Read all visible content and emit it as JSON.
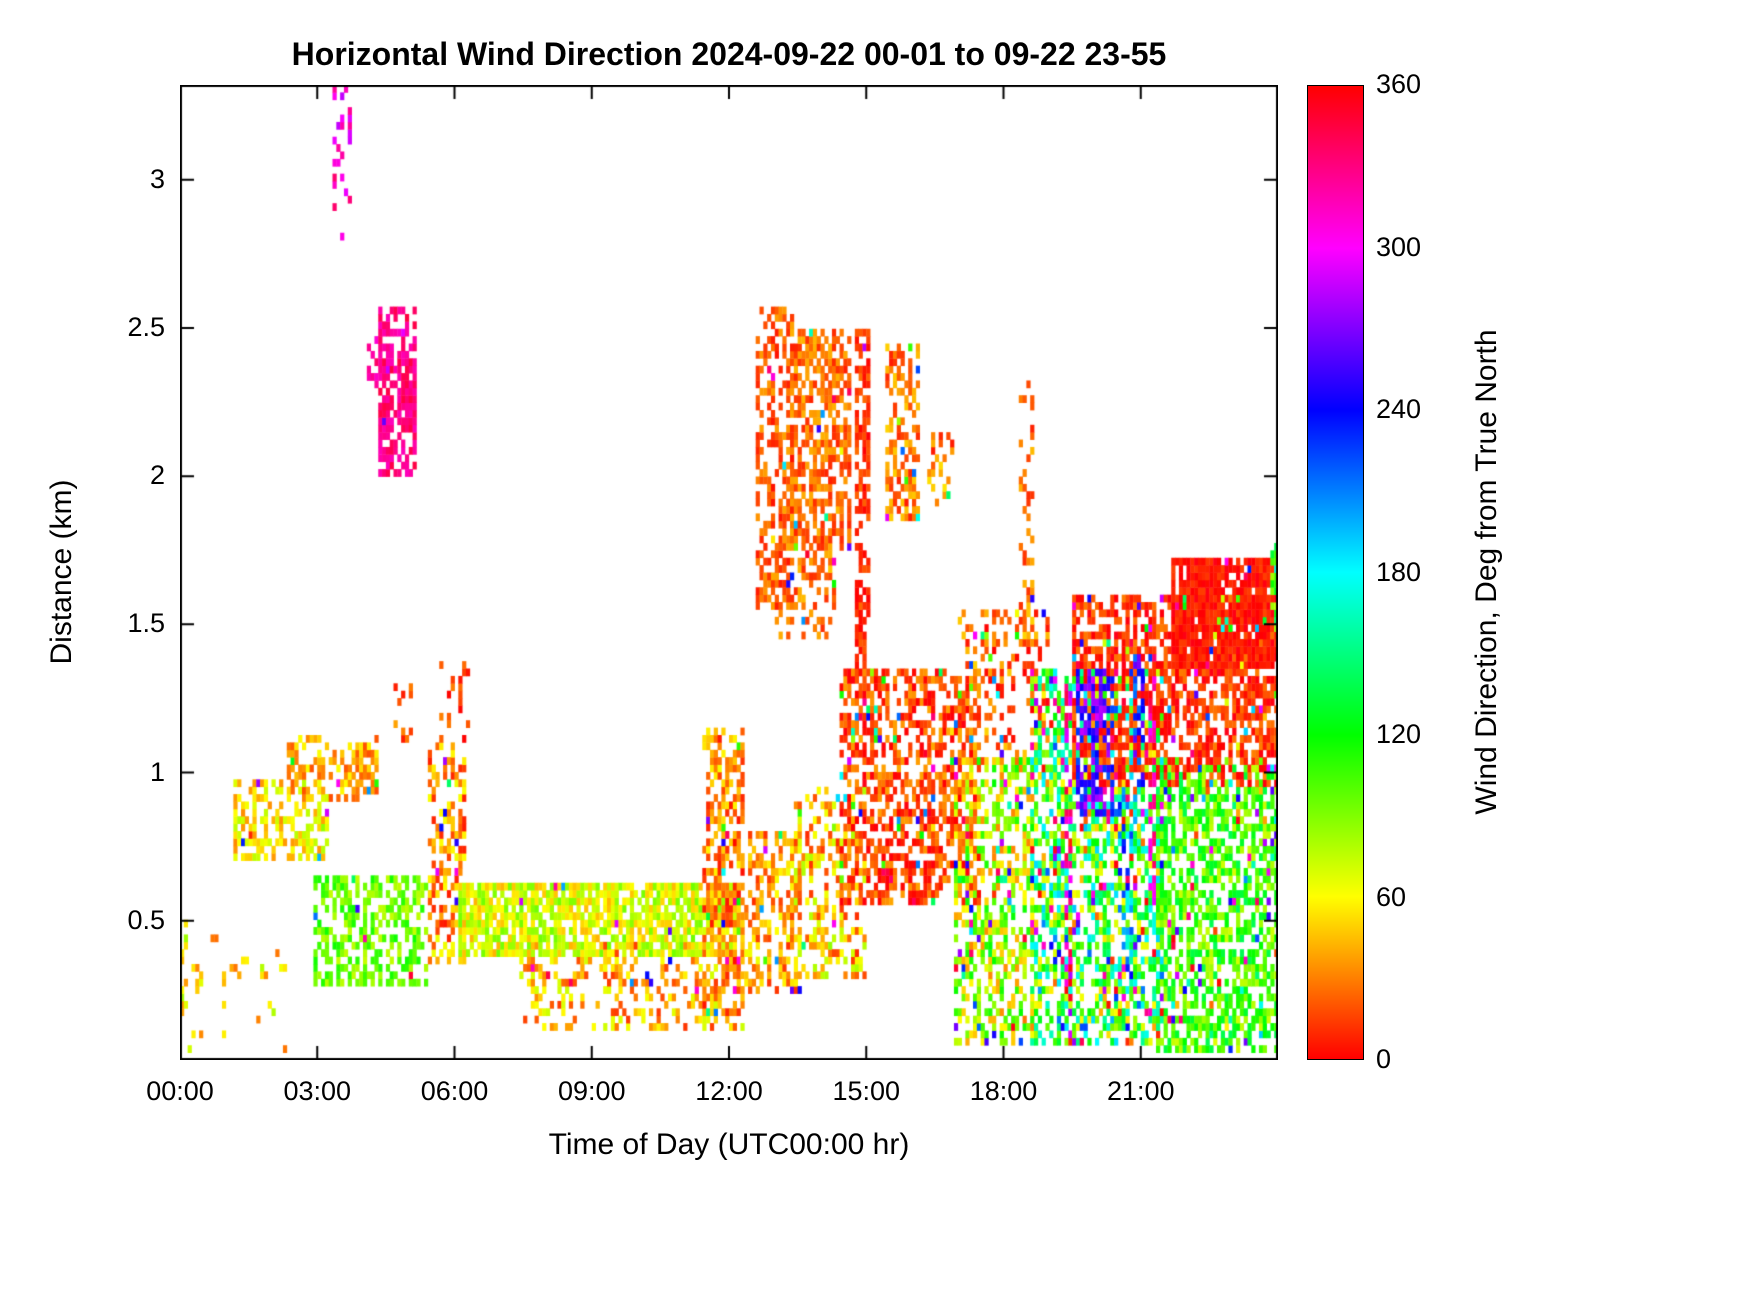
{
  "figure": {
    "title": "Horizontal Wind Direction 2024-09-22 00-01 to 09-22 23-55",
    "xlabel": "Time of Day (UTC00:00 hr)",
    "ylabel": "Distance (km)",
    "colorbar_label": "Wind Direction, Deg from True North"
  },
  "chart_data": {
    "type": "heatmap",
    "title": "Horizontal Wind Direction 2024-09-22 00-01 to 09-22 23-55",
    "xlabel": "Time of Day (UTC00:00 hr)",
    "ylabel": "Distance (km)",
    "x_unit": "hours UTC",
    "y_unit": "km",
    "x_range": [
      0,
      24
    ],
    "y_range": [
      0.03,
      3.32
    ],
    "x_ticks": [
      {
        "value": 0,
        "label": "00:00"
      },
      {
        "value": 3,
        "label": "03:00"
      },
      {
        "value": 6,
        "label": "06:00"
      },
      {
        "value": 9,
        "label": "09:00"
      },
      {
        "value": 12,
        "label": "12:00"
      },
      {
        "value": 15,
        "label": "15:00"
      },
      {
        "value": 18,
        "label": "18:00"
      },
      {
        "value": 21,
        "label": "21:00"
      }
    ],
    "y_ticks": [
      0.5,
      1,
      1.5,
      2,
      2.5,
      3
    ],
    "colorbar": {
      "label": "Wind Direction, Deg from True North",
      "range": [
        0,
        360
      ],
      "ticks": [
        0,
        60,
        120,
        180,
        240,
        300,
        360
      ],
      "colormap": "hsv"
    },
    "grid": {
      "cols": 288,
      "rows": 132
    },
    "background": "#ffffff",
    "frame_color": "#000000",
    "clusters_note": "Sparse pixel data approximated as boxes: t=hours UTC, h=km, density=fill fraction, dir=mean wind direction deg, spread=+/- deg, outlier=fraction of random 0-360 specks. Earlier clusters take precedence.",
    "clusters": [
      {
        "name": "pink-plume-0440",
        "t": [
          4.35,
          5.15
        ],
        "h": [
          2.0,
          2.58
        ],
        "density": 0.65,
        "dir": 330,
        "spread": 15,
        "outlier": 0.03
      },
      {
        "name": "pink-specks-0330-top",
        "t": [
          3.3,
          3.75
        ],
        "h": [
          2.8,
          3.32
        ],
        "density": 0.22,
        "dir": 310,
        "spread": 25,
        "outlier": 0
      },
      {
        "name": "pink-speck-0410",
        "t": [
          4.05,
          4.3
        ],
        "h": [
          2.3,
          2.5
        ],
        "density": 0.3,
        "dir": 320,
        "spread": 20,
        "outlier": 0.05
      },
      {
        "name": "red-stripe-1455",
        "t": [
          14.75,
          15.1
        ],
        "h": [
          1.3,
          2.5
        ],
        "density": 0.6,
        "dir": 12,
        "spread": 14,
        "outlier": 0.03
      },
      {
        "name": "orange-cloud-1240",
        "t": [
          12.55,
          13.4
        ],
        "h": [
          1.55,
          2.58
        ],
        "density": 0.5,
        "dir": 22,
        "spread": 18,
        "outlier": 0.04
      },
      {
        "name": "orange-cloud-1320",
        "t": [
          13.3,
          14.65
        ],
        "h": [
          1.75,
          2.5
        ],
        "density": 0.62,
        "dir": 25,
        "spread": 18,
        "outlier": 0.05
      },
      {
        "name": "orange-cloud-1300-low",
        "t": [
          13.0,
          14.3
        ],
        "h": [
          1.45,
          1.8
        ],
        "density": 0.35,
        "dir": 28,
        "spread": 20,
        "outlier": 0.04
      },
      {
        "name": "orange-patch-1545",
        "t": [
          15.45,
          16.2
        ],
        "h": [
          1.85,
          2.45
        ],
        "density": 0.5,
        "dir": 28,
        "spread": 22,
        "outlier": 0.1
      },
      {
        "name": "orange-patch-1630",
        "t": [
          16.35,
          16.95
        ],
        "h": [
          1.9,
          2.15
        ],
        "density": 0.35,
        "dir": 30,
        "spread": 25,
        "outlier": 0.08
      },
      {
        "name": "orange-stripe-1830",
        "t": [
          18.3,
          18.65
        ],
        "h": [
          1.4,
          2.3
        ],
        "density": 0.25,
        "dir": 28,
        "spread": 20,
        "outlier": 0.05
      },
      {
        "name": "speck-1830-top",
        "t": [
          18.4,
          18.55
        ],
        "h": [
          2.25,
          2.33
        ],
        "density": 0.6,
        "dir": 25,
        "spread": 10,
        "outlier": 0
      },
      {
        "name": "green-edge-top-right",
        "t": [
          23.85,
          24.0
        ],
        "h": [
          1.45,
          1.78
        ],
        "density": 0.5,
        "dir": 110,
        "spread": 35,
        "outlier": 0.05
      },
      {
        "name": "red-band-top-late",
        "t": [
          21.7,
          24.0
        ],
        "h": [
          1.35,
          1.72
        ],
        "density": 0.85,
        "dir": 5,
        "spread": 10,
        "outlier": 0.03
      },
      {
        "name": "blue-patch-1940",
        "t": [
          19.55,
          20.45
        ],
        "h": [
          0.85,
          1.35
        ],
        "density": 0.55,
        "dir": 255,
        "spread": 35,
        "outlier": 0.1
      },
      {
        "name": "blue-stripe-2055",
        "t": [
          20.85,
          21.1
        ],
        "h": [
          0.95,
          1.4
        ],
        "density": 0.5,
        "dir": 235,
        "spread": 35,
        "outlier": 0.08
      },
      {
        "name": "magenta-stripe-1925",
        "t": [
          19.3,
          19.5
        ],
        "h": [
          0.3,
          1.3
        ],
        "density": 0.5,
        "dir": 315,
        "spread": 30,
        "outlier": 0.08
      },
      {
        "name": "magenta-stripe-2115",
        "t": [
          21.15,
          21.3
        ],
        "h": [
          0.55,
          1.3
        ],
        "density": 0.45,
        "dir": 320,
        "spread": 25,
        "outlier": 0.08
      },
      {
        "name": "cyan-stripe-2035",
        "t": [
          20.5,
          20.8
        ],
        "h": [
          0.3,
          0.95
        ],
        "density": 0.4,
        "dir": 205,
        "spread": 40,
        "outlier": 0.1
      },
      {
        "name": "red-region-late",
        "t": [
          19.5,
          24.0
        ],
        "h": [
          0.95,
          1.6
        ],
        "density": 0.6,
        "dir": 12,
        "spread": 18,
        "outlier": 0.1
      },
      {
        "name": "multicolor-noise-1840-2130",
        "t": [
          18.6,
          21.5
        ],
        "h": [
          0.08,
          1.35
        ],
        "density": 0.55,
        "dir": 120,
        "spread": 70,
        "outlier": 0.3
      },
      {
        "name": "green-region-late",
        "t": [
          21.3,
          24.0
        ],
        "h": [
          0.05,
          1.05
        ],
        "density": 0.6,
        "dir": 105,
        "spread": 35,
        "outlier": 0.12
      },
      {
        "name": "mixed-region-1700-1840",
        "t": [
          16.9,
          18.7
        ],
        "h": [
          0.08,
          1.05
        ],
        "density": 0.5,
        "dir": 75,
        "spread": 45,
        "outlier": 0.15
      },
      {
        "name": "red-orange-region-1430-1730",
        "t": [
          14.4,
          17.5
        ],
        "h": [
          0.55,
          1.35
        ],
        "density": 0.55,
        "dir": 18,
        "spread": 22,
        "outlier": 0.1
      },
      {
        "name": "orange-scatter-1700-1900-mid",
        "t": [
          17.0,
          19.0
        ],
        "h": [
          1.0,
          1.55
        ],
        "density": 0.3,
        "dir": 25,
        "spread": 25,
        "outlier": 0.1
      },
      {
        "name": "yellow-scatter-1330-1500",
        "t": [
          13.4,
          15.0
        ],
        "h": [
          0.3,
          0.95
        ],
        "density": 0.38,
        "dir": 45,
        "spread": 35,
        "outlier": 0.07
      },
      {
        "name": "orange-low-1220-1340",
        "t": [
          12.3,
          13.6
        ],
        "h": [
          0.25,
          0.8
        ],
        "density": 0.5,
        "dir": 38,
        "spread": 28,
        "outlier": 0.05
      },
      {
        "name": "noon-plume",
        "t": [
          11.45,
          12.35
        ],
        "h": [
          0.18,
          1.15
        ],
        "density": 0.5,
        "dir": 30,
        "spread": 28,
        "outlier": 0.1
      },
      {
        "name": "main-band-0600-1200",
        "t": [
          6.05,
          12.2
        ],
        "h": [
          0.38,
          0.63
        ],
        "density": 0.78,
        "dir": 68,
        "spread": 26,
        "outlier": 0.02
      },
      {
        "name": "low-scatter-0730-1215",
        "t": [
          7.4,
          12.3
        ],
        "h": [
          0.14,
          0.42
        ],
        "density": 0.3,
        "dir": 42,
        "spread": 30,
        "outlier": 0.04
      },
      {
        "name": "stripe-0550",
        "t": [
          5.4,
          6.25
        ],
        "h": [
          0.35,
          1.1
        ],
        "density": 0.45,
        "dir": 35,
        "spread": 30,
        "outlier": 0.06
      },
      {
        "name": "red-specks-0600-up",
        "t": [
          5.7,
          6.3
        ],
        "h": [
          1.1,
          1.38
        ],
        "density": 0.25,
        "dir": 18,
        "spread": 18,
        "outlier": 0
      },
      {
        "name": "red-specks-0450",
        "t": [
          4.7,
          5.05
        ],
        "h": [
          1.1,
          1.3
        ],
        "density": 0.2,
        "dir": 22,
        "spread": 18,
        "outlier": 0
      },
      {
        "name": "green-patch-0300-0520",
        "t": [
          2.9,
          5.45
        ],
        "h": [
          0.28,
          0.66
        ],
        "density": 0.5,
        "dir": 95,
        "spread": 22,
        "outlier": 0.03
      },
      {
        "name": "yellow-band-0110-0315",
        "t": [
          1.15,
          3.25
        ],
        "h": [
          0.7,
          0.98
        ],
        "density": 0.45,
        "dir": 55,
        "spread": 22,
        "outlier": 0.04
      },
      {
        "name": "orange-band-0220-0420",
        "t": [
          2.35,
          4.35
        ],
        "h": [
          0.9,
          1.13
        ],
        "density": 0.5,
        "dir": 40,
        "spread": 22,
        "outlier": 0.04
      },
      {
        "name": "left-edge-column",
        "t": [
          0.0,
          0.18
        ],
        "h": [
          0.05,
          0.5
        ],
        "density": 0.5,
        "dir": 60,
        "spread": 25,
        "outlier": 0
      },
      {
        "name": "sparse-bottom-0000-0220",
        "t": [
          0.15,
          2.3
        ],
        "h": [
          0.05,
          0.45
        ],
        "density": 0.06,
        "dir": 50,
        "spread": 30,
        "outlier": 0.05
      }
    ]
  }
}
